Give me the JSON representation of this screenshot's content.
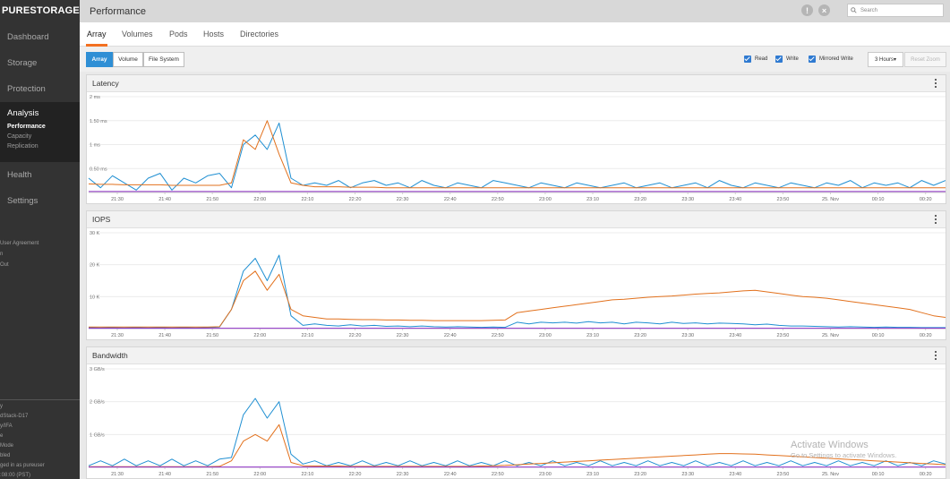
{
  "brand": {
    "logo_text": "PURESTORAGE",
    "logo_mark": "‹"
  },
  "sidebar": {
    "items": [
      {
        "label": "Dashboard"
      },
      {
        "label": "Storage"
      },
      {
        "label": "Protection"
      }
    ],
    "active": {
      "label": "Analysis",
      "subitems": [
        {
          "label": "Performance"
        },
        {
          "label": "Capacity"
        },
        {
          "label": "Replication"
        }
      ]
    },
    "items_after": [
      {
        "label": "Health"
      },
      {
        "label": "Settings"
      }
    ],
    "links": [
      "User Agreement",
      "n",
      "Out"
    ],
    "footer": [
      "y",
      "dStack-D17",
      "y/IFA",
      "e",
      "Mode",
      "bled",
      "ged in as pureuser",
      ":08:00 (PST)"
    ]
  },
  "header": {
    "title": "Performance",
    "alert_icon": "alert-icon",
    "close_icon": "close-icon",
    "search_placeholder": "Search"
  },
  "tabs": [
    {
      "label": "Array"
    },
    {
      "label": "Volumes"
    },
    {
      "label": "Pods"
    },
    {
      "label": "Hosts"
    },
    {
      "label": "Directories"
    }
  ],
  "toolbar": {
    "scope_buttons": [
      {
        "label": "Array"
      },
      {
        "label": "Volume"
      },
      {
        "label": "File System"
      }
    ],
    "checkboxes": [
      {
        "label": "Read",
        "checked": true
      },
      {
        "label": "Write",
        "checked": true
      },
      {
        "label": "Mirrored Write",
        "checked": true
      }
    ],
    "range_label": "3 Hours▾",
    "reset_label": "Reset Zoom"
  },
  "colors": {
    "read": "#1f8fd2",
    "write": "#e2711d",
    "mirrored": "#8e2fc4",
    "accent": "#f37021"
  },
  "x_ticks": [
    "21:30",
    "21:40",
    "21:50",
    "22:00",
    "22:10",
    "22:20",
    "22:30",
    "22:40",
    "22:50",
    "23:00",
    "23:10",
    "23:20",
    "23:30",
    "23:40",
    "23:50",
    "25. Nov",
    "00:10",
    "00:20"
  ],
  "charts": [
    {
      "title": "Latency",
      "y_ticks": [
        "2 ms",
        "1.50 ms",
        "1 ms",
        "0.50 ms"
      ]
    },
    {
      "title": "IOPS",
      "y_ticks": [
        "30 K",
        "20 K",
        "10 K"
      ]
    },
    {
      "title": "Bandwidth",
      "y_ticks": [
        "3 GB/s",
        "2 GB/s",
        "1 GB/s"
      ]
    }
  ],
  "chart_data": [
    {
      "type": "line",
      "title": "Latency",
      "unit": "ms",
      "ylim": [
        0,
        2
      ],
      "x_range": [
        "21:25",
        "00:25"
      ],
      "series": [
        {
          "name": "Read",
          "values": [
            0.3,
            0.1,
            0.35,
            0.2,
            0.05,
            0.3,
            0.4,
            0.05,
            0.3,
            0.2,
            0.35,
            0.4,
            0.1,
            1.0,
            1.2,
            0.9,
            1.45,
            0.3,
            0.15,
            0.2,
            0.15,
            0.25,
            0.1,
            0.2,
            0.25,
            0.15,
            0.2,
            0.1,
            0.25,
            0.15,
            0.1,
            0.2,
            0.15,
            0.1,
            0.25,
            0.2,
            0.15,
            0.1,
            0.2,
            0.15,
            0.1,
            0.2,
            0.15,
            0.1,
            0.15,
            0.2,
            0.1,
            0.15,
            0.2,
            0.1,
            0.15,
            0.2,
            0.1,
            0.25,
            0.15,
            0.1,
            0.2,
            0.15,
            0.1,
            0.2,
            0.15,
            0.1,
            0.2,
            0.15,
            0.25,
            0.1,
            0.2,
            0.15,
            0.2,
            0.1,
            0.25,
            0.15,
            0.25
          ]
        },
        {
          "name": "Write",
          "values": [
            0.18,
            0.17,
            0.17,
            0.16,
            0.16,
            0.16,
            0.16,
            0.15,
            0.15,
            0.15,
            0.15,
            0.15,
            0.2,
            1.1,
            0.9,
            1.5,
            0.8,
            0.2,
            0.15,
            0.12,
            0.12,
            0.12,
            0.11,
            0.11,
            0.11,
            0.1,
            0.1,
            0.1,
            0.1,
            0.1,
            0.1,
            0.1,
            0.1,
            0.1,
            0.1,
            0.1,
            0.1,
            0.1,
            0.1,
            0.1,
            0.1,
            0.1,
            0.1,
            0.1,
            0.1,
            0.1,
            0.1,
            0.1,
            0.1,
            0.1,
            0.1,
            0.1,
            0.1,
            0.1,
            0.1,
            0.1,
            0.1,
            0.1,
            0.1,
            0.1,
            0.1,
            0.1,
            0.1,
            0.1,
            0.1,
            0.1,
            0.1,
            0.1,
            0.1,
            0.1,
            0.1,
            0.1,
            0.1
          ]
        },
        {
          "name": "Mirrored Write",
          "values": [
            0.02,
            0.02,
            0.02,
            0.02,
            0.02,
            0.02,
            0.02,
            0.02,
            0.02,
            0.02,
            0.02,
            0.02,
            0.02,
            0.02,
            0.02,
            0.02,
            0.02,
            0.02,
            0.02,
            0.02,
            0.02,
            0.02,
            0.02,
            0.02,
            0.02,
            0.02,
            0.02,
            0.02,
            0.02,
            0.02,
            0.02,
            0.02,
            0.02,
            0.02,
            0.02,
            0.02,
            0.02,
            0.02,
            0.02,
            0.02,
            0.02,
            0.02,
            0.02,
            0.02,
            0.02,
            0.02,
            0.02,
            0.02,
            0.02,
            0.02,
            0.02,
            0.02,
            0.02,
            0.02,
            0.02,
            0.02,
            0.02,
            0.02,
            0.02,
            0.02,
            0.02,
            0.02,
            0.02,
            0.02,
            0.02,
            0.02,
            0.02,
            0.02,
            0.02,
            0.02,
            0.02,
            0.02,
            0.02
          ]
        }
      ]
    },
    {
      "type": "line",
      "title": "IOPS",
      "unit": "K",
      "ylim": [
        0,
        30
      ],
      "x_range": [
        "21:25",
        "00:25"
      ],
      "series": [
        {
          "name": "Read",
          "values": [
            0.3,
            0.2,
            0.3,
            0.2,
            0.3,
            0.2,
            0.3,
            0.2,
            0.3,
            0.2,
            0.3,
            0.5,
            6,
            18,
            22,
            15,
            23,
            4,
            1,
            1.5,
            1,
            0.8,
            1.2,
            0.8,
            1,
            0.7,
            0.8,
            0.6,
            0.8,
            0.6,
            0.5,
            0.6,
            0.5,
            0.4,
            0.5,
            0.4,
            2,
            1.5,
            2,
            1.8,
            2,
            1.7,
            2.2,
            1.8,
            2,
            1.5,
            2,
            1.8,
            1.5,
            2,
            1.6,
            1.8,
            1.5,
            1.7,
            1.6,
            1.5,
            1.2,
            1.4,
            1,
            0.8,
            0.8,
            0.7,
            0.6,
            0.5,
            0.6,
            0.5,
            0.4,
            0.5,
            0.4,
            0.4,
            0.3,
            0.3,
            0.3
          ]
        },
        {
          "name": "Write",
          "values": [
            0.5,
            0.5,
            0.5,
            0.5,
            0.5,
            0.5,
            0.5,
            0.5,
            0.5,
            0.5,
            0.5,
            0.6,
            6,
            15,
            18,
            12,
            17,
            6,
            4,
            3.5,
            3,
            3,
            2.9,
            2.8,
            2.8,
            2.7,
            2.7,
            2.6,
            2.6,
            2.5,
            2.5,
            2.5,
            2.5,
            2.5,
            2.6,
            2.7,
            5,
            5.5,
            6,
            6.5,
            7,
            7.5,
            8,
            8.5,
            9,
            9.2,
            9.5,
            9.8,
            10,
            10.2,
            10.5,
            10.8,
            11,
            11.2,
            11.5,
            11.8,
            12,
            11.5,
            11,
            10.5,
            10,
            9.8,
            9.5,
            9,
            8.5,
            8,
            7.5,
            7,
            6.5,
            6,
            5,
            4,
            3.5
          ]
        },
        {
          "name": "Mirrored Write",
          "values": [
            0.1,
            0.1,
            0.1,
            0.1,
            0.1,
            0.1,
            0.1,
            0.1,
            0.1,
            0.1,
            0.1,
            0.1,
            0.1,
            0.1,
            0.1,
            0.1,
            0.1,
            0.1,
            0.1,
            0.1,
            0.1,
            0.1,
            0.1,
            0.1,
            0.1,
            0.1,
            0.1,
            0.1,
            0.1,
            0.1,
            0.1,
            0.1,
            0.1,
            0.1,
            0.1,
            0.1,
            0.1,
            0.1,
            0.1,
            0.1,
            0.1,
            0.1,
            0.1,
            0.1,
            0.1,
            0.1,
            0.1,
            0.1,
            0.1,
            0.1,
            0.1,
            0.1,
            0.1,
            0.1,
            0.1,
            0.1,
            0.1,
            0.1,
            0.1,
            0.1,
            0.1,
            0.1,
            0.1,
            0.1,
            0.1,
            0.1,
            0.1,
            0.1,
            0.1,
            0.1,
            0.1,
            0.1,
            0.1
          ]
        }
      ]
    },
    {
      "type": "line",
      "title": "Bandwidth",
      "unit": "GB/s",
      "ylim": [
        0,
        3
      ],
      "x_range": [
        "21:25",
        "00:25"
      ],
      "series": [
        {
          "name": "Read",
          "values": [
            0.05,
            0.2,
            0.05,
            0.25,
            0.05,
            0.2,
            0.05,
            0.25,
            0.05,
            0.2,
            0.05,
            0.25,
            0.3,
            1.6,
            2.1,
            1.5,
            2.0,
            0.4,
            0.1,
            0.2,
            0.05,
            0.15,
            0.05,
            0.2,
            0.05,
            0.15,
            0.05,
            0.2,
            0.05,
            0.15,
            0.05,
            0.2,
            0.05,
            0.15,
            0.05,
            0.2,
            0.05,
            0.15,
            0.05,
            0.2,
            0.05,
            0.15,
            0.05,
            0.2,
            0.05,
            0.15,
            0.05,
            0.2,
            0.05,
            0.15,
            0.05,
            0.2,
            0.05,
            0.15,
            0.05,
            0.2,
            0.05,
            0.15,
            0.05,
            0.2,
            0.05,
            0.15,
            0.05,
            0.2,
            0.05,
            0.15,
            0.05,
            0.2,
            0.05,
            0.15,
            0.05,
            0.2,
            0.1
          ]
        },
        {
          "name": "Write",
          "values": [
            0.02,
            0.02,
            0.02,
            0.02,
            0.02,
            0.02,
            0.02,
            0.02,
            0.02,
            0.02,
            0.02,
            0.03,
            0.2,
            0.8,
            1.0,
            0.8,
            1.3,
            0.15,
            0.05,
            0.04,
            0.04,
            0.04,
            0.03,
            0.03,
            0.03,
            0.03,
            0.03,
            0.03,
            0.03,
            0.03,
            0.03,
            0.03,
            0.03,
            0.04,
            0.05,
            0.06,
            0.08,
            0.1,
            0.12,
            0.14,
            0.16,
            0.18,
            0.2,
            0.22,
            0.24,
            0.26,
            0.28,
            0.3,
            0.32,
            0.34,
            0.36,
            0.38,
            0.4,
            0.42,
            0.42,
            0.41,
            0.4,
            0.38,
            0.36,
            0.34,
            0.32,
            0.3,
            0.28,
            0.26,
            0.24,
            0.22,
            0.2,
            0.18,
            0.16,
            0.14,
            0.12,
            0.1,
            0.08
          ]
        },
        {
          "name": "Mirrored Write",
          "values": [
            0.01,
            0.01,
            0.01,
            0.01,
            0.01,
            0.01,
            0.01,
            0.01,
            0.01,
            0.01,
            0.01,
            0.01,
            0.01,
            0.01,
            0.01,
            0.01,
            0.01,
            0.01,
            0.01,
            0.01,
            0.01,
            0.01,
            0.01,
            0.01,
            0.01,
            0.01,
            0.01,
            0.01,
            0.01,
            0.01,
            0.01,
            0.01,
            0.01,
            0.01,
            0.01,
            0.01,
            0.01,
            0.01,
            0.01,
            0.01,
            0.01,
            0.01,
            0.01,
            0.01,
            0.01,
            0.01,
            0.01,
            0.01,
            0.01,
            0.01,
            0.01,
            0.01,
            0.01,
            0.01,
            0.01,
            0.01,
            0.01,
            0.01,
            0.01,
            0.01,
            0.01,
            0.01,
            0.01,
            0.01,
            0.01,
            0.01,
            0.01,
            0.01,
            0.01,
            0.01,
            0.01,
            0.01,
            0.01
          ]
        }
      ]
    }
  ],
  "watermark": {
    "line1": "Activate Windows",
    "line2": "Go to Settings to activate Windows."
  }
}
